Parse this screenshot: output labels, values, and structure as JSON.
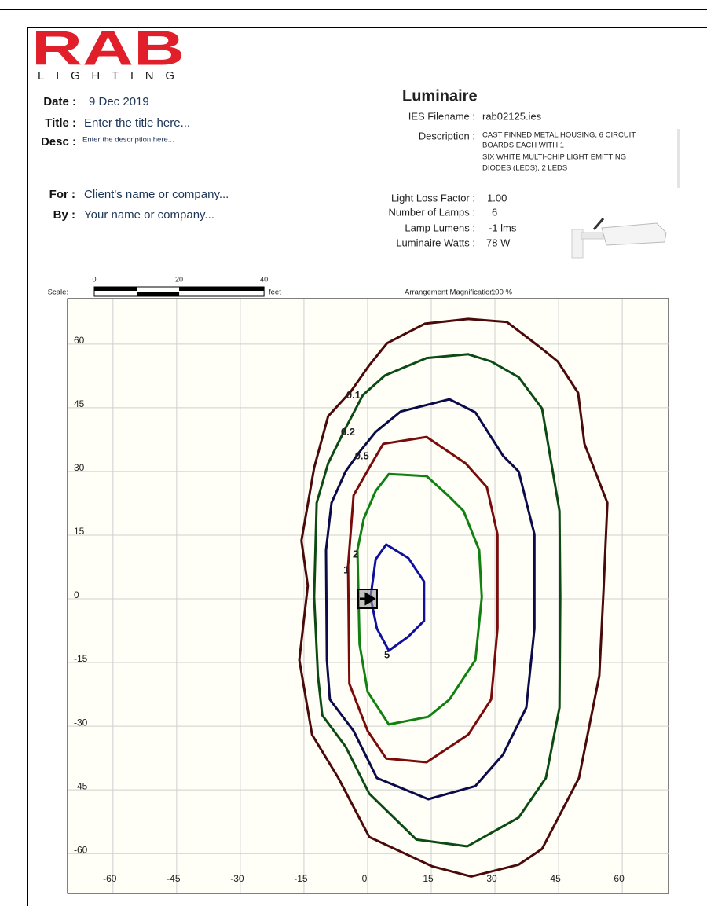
{
  "header": {
    "logo": "RAB",
    "logo_sub": "LIGHTING",
    "date_label": "Date :",
    "date": "9 Dec 2019",
    "title_label": "Title :",
    "title": "Enter the title here...",
    "desc_label": "Desc :",
    "desc": "Enter the description here...",
    "for_label": "For :",
    "for": "Client's name or company...",
    "by_label": "By :",
    "by": "Your name or company..."
  },
  "luminaire": {
    "heading": "Luminaire",
    "ies_label": "IES Filename :",
    "ies": "rab02125.ies",
    "description_label": "Description :",
    "description": [
      "CAST FINNED METAL HOUSING, 6 CIRCUIT",
      "BOARDS EACH WITH 1",
      "SIX WHITE MULTI-CHIP LIGHT EMITTING",
      "DIODES (LEDS), 2 LEDS"
    ],
    "llf_label": "Light Loss Factor :",
    "llf": "1.00",
    "lamps_label": "Number of Lamps :",
    "lamps": "6",
    "lumens_label": "Lamp Lumens :",
    "lumens": "-1 lms",
    "watts_label": "Luminaire Watts :",
    "watts": "78 W"
  },
  "scale": {
    "label": "Scale:",
    "ticks": [
      0,
      20,
      40
    ],
    "unit": "feet"
  },
  "magnification": {
    "label": "Arrangement Magnification:",
    "value": "100 %"
  },
  "chart_data": {
    "type": "contour",
    "grid": true,
    "xlim": [
      -70.7,
      70.9
    ],
    "ylim": [
      -69.4,
      70.7
    ],
    "xticks": [
      -60,
      -45,
      -30,
      -15,
      0,
      15,
      30,
      45,
      60
    ],
    "yticks": [
      -60,
      -45,
      -30,
      -15,
      0,
      15,
      30,
      45,
      60
    ],
    "contours": [
      {
        "level": 0.1,
        "color": "#4a0a0a",
        "x": [
          23.7,
          13.5,
          4.6,
          0.4,
          -3.9,
          -9.3,
          -12.6,
          -15.6,
          -14.1,
          -16.1,
          -13.1,
          -6.9,
          0.4,
          15.2,
          24.4,
          35.6,
          41.1,
          49.8,
          54.6,
          55.6,
          56.5,
          51.1,
          49.6,
          44.8,
          40.2,
          32.8
        ],
        "y": [
          65.9,
          64.8,
          60.2,
          55,
          48.9,
          43,
          30.9,
          13.7,
          3.1,
          -14.4,
          -32,
          -42.2,
          -56.1,
          -63,
          -65.4,
          -62.6,
          -58.9,
          -42.2,
          -18.1,
          2.2,
          22.6,
          36.5,
          48.5,
          55.9,
          59.6,
          65.2
        ]
      },
      {
        "level": 0.2,
        "color": "#0b4a12",
        "x": [
          23.7,
          13.9,
          4.1,
          -1.1,
          -5.2,
          -9.3,
          -12,
          -12.6,
          -11.7,
          -10.7,
          -5.2,
          0.4,
          11.5,
          23.5,
          35.6,
          42,
          45.2,
          45.4,
          45.2,
          41.1,
          35.6,
          29.1
        ],
        "y": [
          57.6,
          56.7,
          52.6,
          48,
          40.2,
          31.9,
          22.6,
          0.4,
          -18.1,
          -27.4,
          -34.8,
          -45.9,
          -56.7,
          -58.3,
          -51.5,
          -42.2,
          -25.6,
          0.4,
          20.7,
          44.8,
          52.2,
          55.9
        ]
      },
      {
        "level": 0.5,
        "color": "#0b0b4a",
        "x": [
          19.3,
          7.8,
          1.9,
          -1.9,
          -5.2,
          -8.5,
          -9.8,
          -9.6,
          -8.9,
          -3.3,
          2.2,
          14.3,
          25.4,
          31.9,
          37.4,
          39.3,
          39.3,
          35.6,
          31.9,
          25.4
        ],
        "y": [
          47,
          44.1,
          39.3,
          34.6,
          30,
          22.6,
          11.5,
          -14.4,
          -23.7,
          -31.1,
          -42.2,
          -47.2,
          -44.1,
          -36.7,
          -25.6,
          -7,
          15.2,
          30,
          33.7,
          43.9
        ]
      },
      {
        "level": 1,
        "color": "#7a0b0b",
        "x": [
          13.9,
          3.7,
          0.4,
          -3.3,
          -4.6,
          -4.3,
          0,
          4.4,
          13.9,
          23.7,
          29.1,
          30.6,
          30.6,
          28.1,
          23.1
        ],
        "y": [
          38.1,
          36.5,
          30.9,
          24.4,
          7.8,
          -20,
          -31.1,
          -37.6,
          -38.5,
          -32,
          -23.7,
          -7,
          15.2,
          26.3,
          31.9
        ]
      },
      {
        "level": 2,
        "color": "#108010",
        "x": [
          5,
          1.9,
          -0.9,
          -2.4,
          -1.9,
          0,
          5,
          14.3,
          19.3,
          25.4,
          26.9,
          26.3,
          22.6,
          18.9,
          13.9
        ],
        "y": [
          29.4,
          25.4,
          18.9,
          11.5,
          -10.7,
          -21.9,
          -29.6,
          -27.8,
          -23.7,
          -14.4,
          0.4,
          11.5,
          20.7,
          24.4,
          28.9
        ]
      },
      {
        "level": 5,
        "color": "#1010a0",
        "x": [
          4.4,
          1.9,
          0.7,
          2.2,
          5,
          9.6,
          13.3,
          13.3,
          9.6
        ],
        "y": [
          12.8,
          9.3,
          0.4,
          -7,
          -12.2,
          -8.9,
          -5.2,
          4.1,
          9.6
        ]
      }
    ]
  }
}
